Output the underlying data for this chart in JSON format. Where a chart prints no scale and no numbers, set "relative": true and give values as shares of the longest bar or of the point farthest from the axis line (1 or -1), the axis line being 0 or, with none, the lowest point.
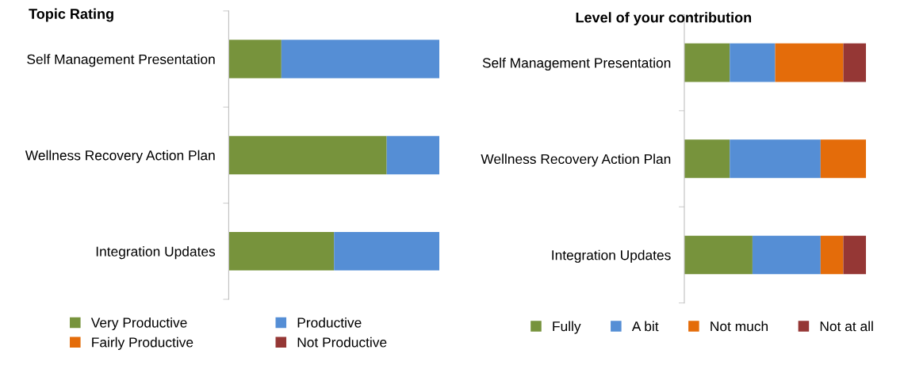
{
  "chart_data": [
    {
      "type": "bar",
      "orientation": "horizontal",
      "stacked": true,
      "relative": true,
      "title": "Topic Rating",
      "legend": "bottom",
      "grid": false,
      "categories": [
        "Self Management Presentation",
        "Wellness Recovery Action Plan",
        "Integration Updates"
      ],
      "series": [
        {
          "name": "Very Productive",
          "color": "#77933c",
          "values": [
            0.25,
            0.75,
            0.5
          ]
        },
        {
          "name": "Productive",
          "color": "#558ed5",
          "values": [
            0.75,
            0.25,
            0.5
          ]
        },
        {
          "name": "Fairly Productive",
          "color": "#e46c0a",
          "values": [
            0,
            0,
            0
          ]
        },
        {
          "name": "Not Productive",
          "color": "#953735",
          "values": [
            0,
            0,
            0
          ]
        }
      ]
    },
    {
      "type": "bar",
      "orientation": "horizontal",
      "stacked": true,
      "relative": true,
      "title": "Level of your contribution",
      "legend": "bottom",
      "grid": false,
      "categories": [
        "Self Management Presentation",
        "Wellness Recovery Action Plan",
        "Integration Updates"
      ],
      "series": [
        {
          "name": "Fully",
          "color": "#77933c",
          "values": [
            0.25,
            0.25,
            0.375
          ]
        },
        {
          "name": "A bit",
          "color": "#558ed5",
          "values": [
            0.25,
            0.5,
            0.375
          ]
        },
        {
          "name": "Not much",
          "color": "#e46c0a",
          "values": [
            0.375,
            0.25,
            0.125
          ]
        },
        {
          "name": "Not at all",
          "color": "#953735",
          "values": [
            0.125,
            0,
            0.125
          ]
        }
      ]
    }
  ]
}
